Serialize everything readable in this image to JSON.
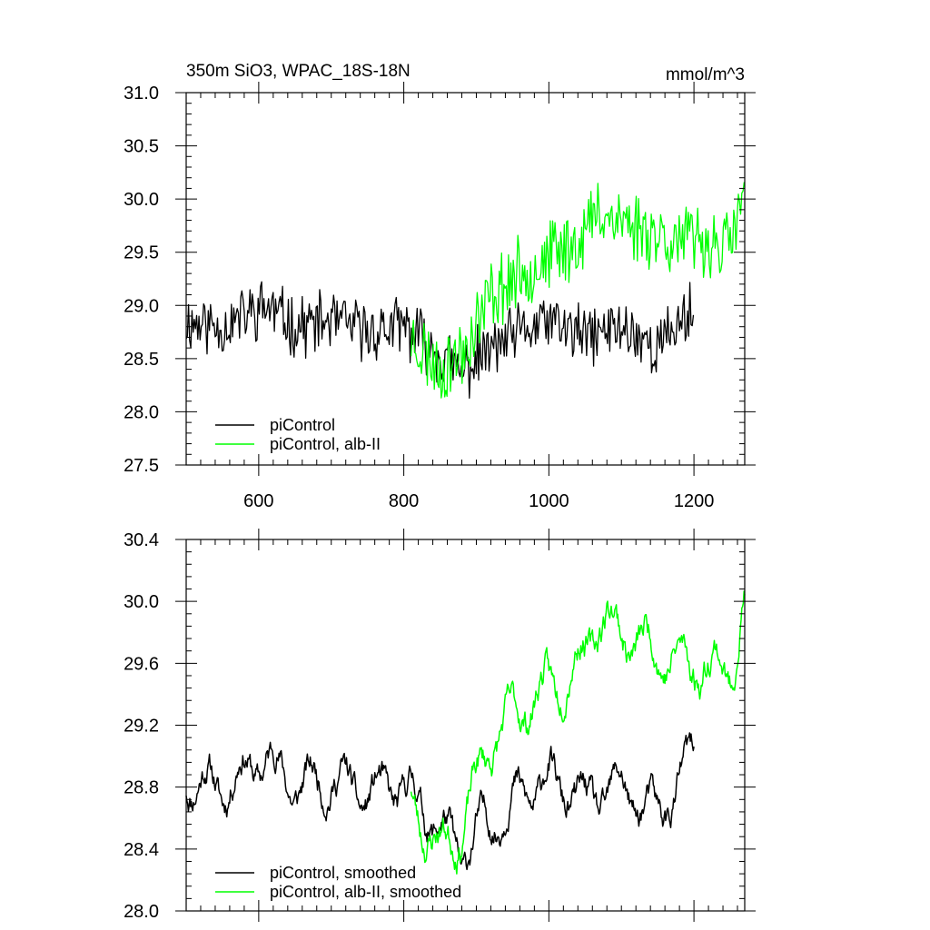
{
  "colors": {
    "picontrol": "#000000",
    "alb": "#00ff00",
    "axis": "#000000"
  },
  "chart_data": [
    {
      "type": "line",
      "title": "350m SiO3, WPAC_18S-18N",
      "units": "mmol/m^3",
      "xlim": [
        500,
        1270
      ],
      "ylim": [
        27.5,
        31.0
      ],
      "x_ticks": [
        600,
        800,
        1000,
        1200
      ],
      "x_tick_labels": [
        "600",
        "800",
        "1000",
        "1200"
      ],
      "y_ticks": [
        27.5,
        28.0,
        28.5,
        29.0,
        29.5,
        30.0,
        30.5,
        31.0
      ],
      "y_tick_labels": [
        "27.5",
        "28.0",
        "28.5",
        "29.0",
        "29.5",
        "30.0",
        "30.5",
        "31.0"
      ],
      "legend_position": "bottom-left",
      "series": [
        {
          "name": "piControl",
          "x_range": [
            500,
            1200
          ],
          "anchors_x": [
            500,
            550,
            610,
            650,
            700,
            750,
            800,
            840,
            880,
            900,
            950,
            1000,
            1050,
            1100,
            1150,
            1200
          ],
          "anchors_y": [
            28.85,
            28.8,
            29.0,
            28.8,
            28.85,
            28.75,
            28.8,
            28.6,
            28.35,
            28.5,
            28.7,
            28.85,
            28.7,
            28.8,
            28.6,
            29.0
          ],
          "noise_amplitude": 0.25,
          "seed": 11
        },
        {
          "name": "piControl, alb-II",
          "x_range": [
            810,
            1270
          ],
          "anchors_x": [
            810,
            850,
            880,
            920,
            960,
            1000,
            1040,
            1070,
            1100,
            1140,
            1180,
            1220,
            1250,
            1270
          ],
          "anchors_y": [
            28.7,
            28.4,
            28.55,
            29.1,
            29.3,
            29.45,
            29.6,
            29.9,
            29.8,
            29.7,
            29.6,
            29.6,
            29.55,
            30.1
          ],
          "noise_amplitude": 0.3,
          "seed": 23
        }
      ]
    },
    {
      "type": "line",
      "title": "",
      "xlim": [
        500,
        1270
      ],
      "ylim": [
        28.0,
        30.4
      ],
      "x_ticks": [
        600,
        800,
        1000,
        1200
      ],
      "y_ticks": [
        28.0,
        28.4,
        28.8,
        29.2,
        29.6,
        30.0,
        30.4
      ],
      "y_tick_labels": [
        "28.0",
        "28.4",
        "28.8",
        "29.2",
        "29.6",
        "30.0",
        "30.4"
      ],
      "legend_position": "bottom-left",
      "series": [
        {
          "name": "piControl, smoothed",
          "x_range": [
            500,
            1200
          ],
          "anchors_x": [
            500,
            550,
            610,
            650,
            700,
            750,
            800,
            840,
            880,
            900,
            950,
            1000,
            1050,
            1100,
            1150,
            1200
          ],
          "anchors_y": [
            28.85,
            28.8,
            29.0,
            28.8,
            28.85,
            28.75,
            28.8,
            28.6,
            28.35,
            28.5,
            28.7,
            28.85,
            28.7,
            28.8,
            28.6,
            29.0
          ],
          "noise_amplitude": 0.13,
          "seed": 11
        },
        {
          "name": "piControl, alb-II, smoothed",
          "x_range": [
            810,
            1270
          ],
          "anchors_x": [
            810,
            850,
            880,
            920,
            960,
            1000,
            1040,
            1070,
            1100,
            1140,
            1180,
            1220,
            1250,
            1270
          ],
          "anchors_y": [
            28.7,
            28.4,
            28.55,
            29.1,
            29.3,
            29.45,
            29.6,
            29.9,
            29.8,
            29.7,
            29.6,
            29.6,
            29.55,
            30.0
          ],
          "noise_amplitude": 0.14,
          "seed": 23
        }
      ]
    }
  ]
}
